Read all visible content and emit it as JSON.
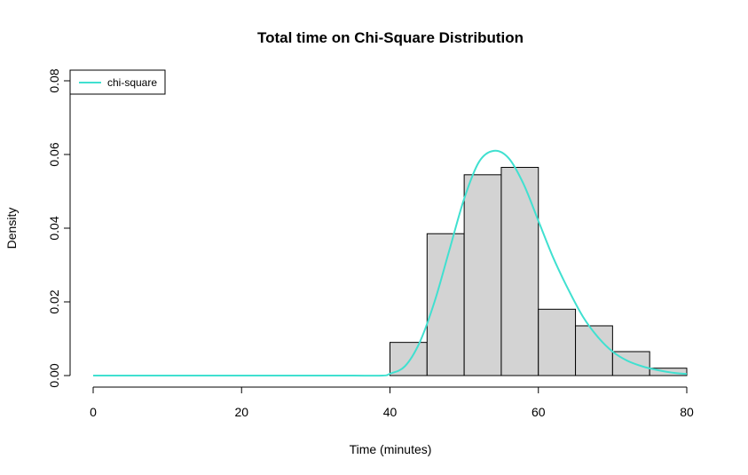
{
  "chart_data": {
    "type": "bar",
    "title": "Total time on Chi-Square Distribution",
    "xlabel": "Time (minutes)",
    "ylabel": "Density",
    "xlim": [
      0,
      80
    ],
    "ylim": [
      0,
      0.08
    ],
    "x_ticks": [
      "0",
      "20",
      "40",
      "60",
      "80"
    ],
    "y_ticks": [
      "0.00",
      "0.02",
      "0.04",
      "0.06",
      "0.08"
    ],
    "grid": false,
    "legend_position": "top-left",
    "histogram": {
      "bin_edges": [
        40,
        45,
        50,
        55,
        60,
        65,
        70,
        75,
        80
      ],
      "densities": [
        0.009,
        0.0385,
        0.0545,
        0.0565,
        0.018,
        0.0135,
        0.0065,
        0.002
      ],
      "fill_color": "#d3d3d3",
      "border_color": "#000000"
    },
    "series": [
      {
        "name": "chi-square",
        "color": "#40e0d0",
        "type": "line",
        "x": [
          0,
          5,
          10,
          15,
          20,
          25,
          30,
          35,
          39,
          40,
          42,
          44,
          46,
          48,
          50,
          52,
          54,
          56,
          58,
          60,
          62,
          64,
          66,
          68,
          70,
          72,
          74,
          76,
          78,
          80
        ],
        "y": [
          0,
          0,
          0,
          0,
          0,
          0,
          0,
          0,
          0,
          0.0005,
          0.0025,
          0.009,
          0.02,
          0.034,
          0.048,
          0.058,
          0.061,
          0.059,
          0.052,
          0.042,
          0.032,
          0.0235,
          0.016,
          0.0105,
          0.0065,
          0.004,
          0.0025,
          0.0015,
          0.0008,
          0.0004
        ]
      }
    ]
  }
}
